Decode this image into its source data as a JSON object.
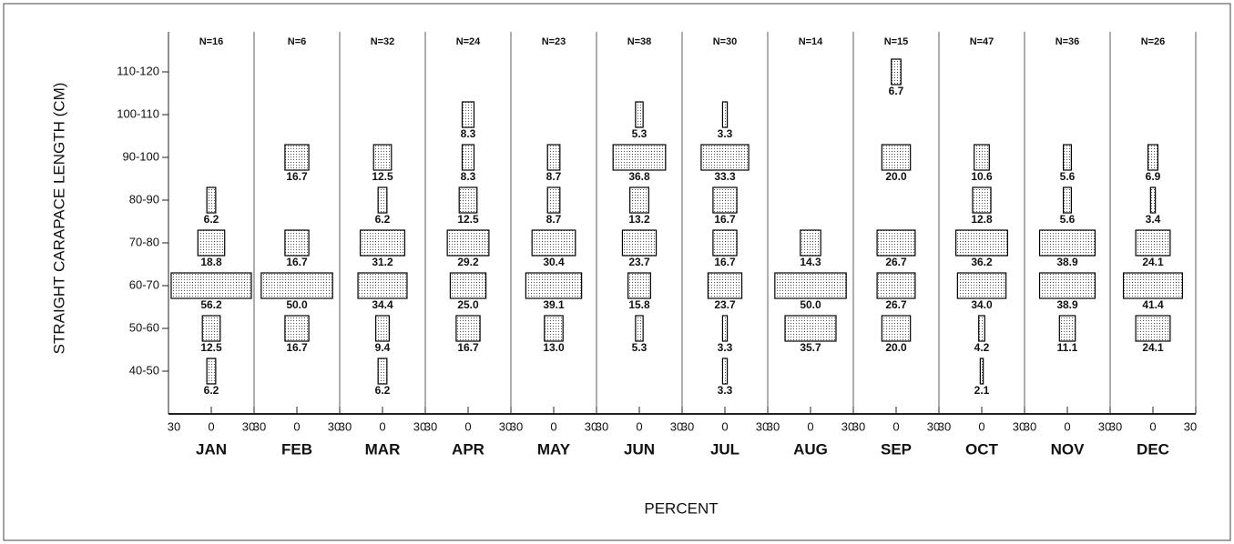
{
  "chart_data": {
    "type": "kite",
    "ylabel": "STRAIGHT CARAPACE LENGTH (CM)",
    "xlabel": "PERCENT",
    "categories": [
      "40-50",
      "50-60",
      "60-70",
      "70-80",
      "80-90",
      "90-100",
      "100-110",
      "110-120"
    ],
    "xlim": [
      -30,
      30
    ],
    "xticks": [
      {
        "value": -30,
        "label": "30"
      },
      0,
      30
    ],
    "color": "#000000",
    "series": [
      {
        "name": "JAN",
        "label": "N=16",
        "values": [
          6.2,
          12.5,
          56.2,
          18.8,
          6.2,
          null,
          null,
          null
        ],
        "value_labels": [
          "6.2",
          "12.5",
          "56.2",
          "18.8",
          "6.2",
          null,
          null,
          null
        ]
      },
      {
        "name": "FEB",
        "label": "N=6",
        "values": [
          null,
          16.7,
          50.0,
          16.7,
          null,
          16.7,
          null,
          null
        ],
        "value_labels": [
          null,
          "16.7",
          "50.0",
          "16.7",
          null,
          "16.7",
          null,
          null
        ]
      },
      {
        "name": "MAR",
        "label": "N=32",
        "values": [
          6.2,
          9.4,
          34.4,
          31.2,
          6.2,
          12.5,
          null,
          null
        ],
        "value_labels": [
          "6.2",
          "9.4",
          "34.4",
          "31.2",
          "6.2",
          "12.5",
          null,
          null
        ]
      },
      {
        "name": "APR",
        "label": "N=24",
        "values": [
          null,
          16.7,
          25.0,
          29.2,
          12.5,
          8.3,
          8.3,
          null
        ],
        "value_labels": [
          null,
          "16.7",
          "25.0",
          "29.2",
          "12.5",
          "8.3",
          "8.3",
          null
        ]
      },
      {
        "name": "MAY",
        "label": "N=23",
        "values": [
          null,
          13.0,
          39.1,
          30.4,
          8.7,
          8.7,
          null,
          null
        ],
        "value_labels": [
          null,
          "13.0",
          "39.1",
          "30.4",
          "8.7",
          "8.7",
          null,
          null
        ]
      },
      {
        "name": "JUN",
        "label": "N=38",
        "values": [
          null,
          5.3,
          15.8,
          23.7,
          13.2,
          36.8,
          5.3,
          null
        ],
        "value_labels": [
          null,
          "5.3",
          "15.8",
          "23.7",
          "13.2",
          "36.8",
          "5.3",
          null
        ]
      },
      {
        "name": "JUL",
        "label": "N=30",
        "values": [
          3.3,
          3.3,
          23.7,
          16.7,
          16.7,
          33.3,
          3.3,
          null
        ],
        "value_labels": [
          "3.3",
          "3.3",
          "23.7",
          "16.7",
          "16.7",
          "33.3",
          "3.3",
          null
        ]
      },
      {
        "name": "AUG",
        "label": "N=14",
        "values": [
          null,
          35.7,
          50.0,
          14.3,
          null,
          null,
          null,
          null
        ],
        "value_labels": [
          null,
          "35.7",
          "50.0",
          "14.3",
          null,
          null,
          null,
          null
        ]
      },
      {
        "name": "SEP",
        "label": "N=15",
        "values": [
          null,
          20.0,
          26.7,
          26.7,
          null,
          20.0,
          null,
          6.7
        ],
        "value_labels": [
          null,
          "20.0",
          "26.7",
          "26.7",
          null,
          "20.0",
          null,
          "6.7"
        ]
      },
      {
        "name": "OCT",
        "label": "N=47",
        "values": [
          2.1,
          4.2,
          34.0,
          36.2,
          12.8,
          10.6,
          null,
          null
        ],
        "value_labels": [
          "2.1",
          "4.2",
          "34.0",
          "36.2",
          "12.8",
          "10.6",
          null,
          null
        ]
      },
      {
        "name": "NOV",
        "label": "N=36",
        "values": [
          null,
          11.1,
          38.9,
          38.9,
          5.6,
          5.6,
          null,
          null
        ],
        "value_labels": [
          null,
          "11.1",
          "38.9",
          "38.9",
          "5.6",
          "5.6",
          null,
          null
        ]
      },
      {
        "name": "DEC",
        "label": "N=26",
        "values": [
          null,
          24.1,
          41.4,
          24.1,
          3.4,
          6.9,
          null,
          null
        ],
        "value_labels": [
          null,
          "24.1",
          "41.4",
          "24.1",
          "3.4",
          "6.9",
          null,
          null
        ]
      }
    ]
  }
}
